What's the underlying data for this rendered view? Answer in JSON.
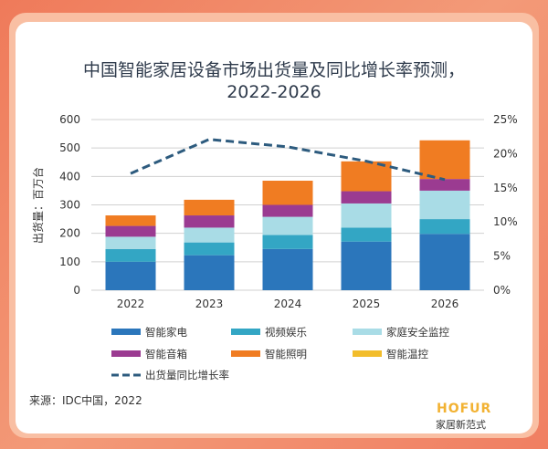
{
  "chart_data": {
    "type": "bar",
    "stacked": true,
    "title": "中国智能家居设备市场出货量及同比增长率预测，",
    "subtitle": "2022-2026",
    "ylabel": "出货量：百万台",
    "ylim": [
      0,
      600
    ],
    "yticks": [
      "0",
      "100",
      "200",
      "300",
      "400",
      "500",
      "600"
    ],
    "y2lim": [
      0,
      25
    ],
    "y2ticks": [
      "0%",
      "5%",
      "10%",
      "15%",
      "20%",
      "25%"
    ],
    "grid": true,
    "legend_position": "bottom",
    "categories": [
      "2022",
      "2023",
      "2024",
      "2025",
      "2026"
    ],
    "series": [
      {
        "name": "智能家电",
        "color": "#2b76bb",
        "values": [
          100,
          123,
          145,
          171,
          198
        ]
      },
      {
        "name": "视频娱乐",
        "color": "#33a6c4",
        "values": [
          45,
          45,
          49,
          49,
          52
        ]
      },
      {
        "name": "家庭安全监控",
        "color": "#a9dce6",
        "values": [
          43,
          52,
          64,
          85,
          100
        ]
      },
      {
        "name": "智能音箱",
        "color": "#9b3b91",
        "values": [
          38,
          43,
          42,
          43,
          41
        ]
      },
      {
        "name": "智能照明",
        "color": "#f07c22",
        "values": [
          37,
          55,
          85,
          105,
          136
        ]
      },
      {
        "name": "智能温控",
        "color": "#f2bd2b",
        "values": [
          0,
          0,
          0,
          0,
          0
        ]
      }
    ],
    "line_series": {
      "name": "出货量同比增长率",
      "color": "#2d5b7e",
      "axis": "right",
      "unit": "%",
      "values": [
        17.1,
        22.1,
        21.0,
        18.9,
        16.2
      ]
    }
  },
  "source": "来源：IDC中国，2022",
  "logo": {
    "brand": "HOFUR",
    "tagline": "家居新范式"
  }
}
